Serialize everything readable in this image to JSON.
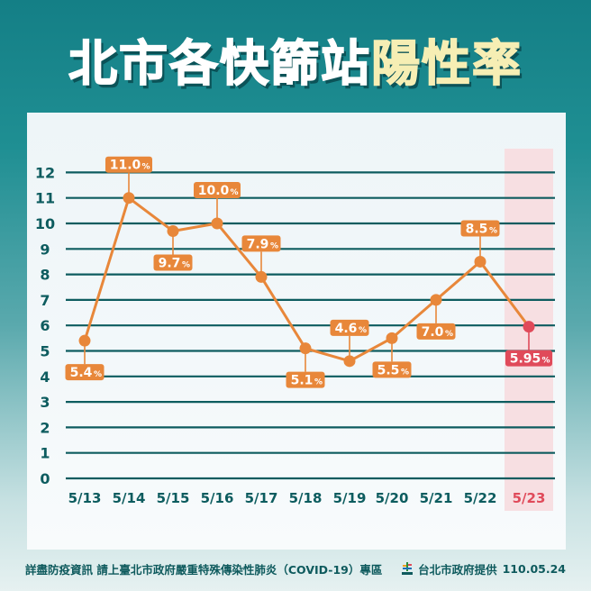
{
  "header": {
    "title_white": "北市各快篩站",
    "title_yellow": "陽性率"
  },
  "footer": {
    "info_text": "詳盡防疫資訊 請上臺北市政府嚴重特殊傳染性肺炎（COVID-19）專區",
    "source_text": "台北市政府提供",
    "date": "110.05.24",
    "logo_icon": "taipei-city-logo-icon"
  },
  "colors": {
    "background_top": "#147f86",
    "line": "#e8873a",
    "highlight": "#e04a5a",
    "highlight_band": "#f7dfe2",
    "grid": "#0d5c5f",
    "axis_text": "#0d5c5f",
    "title_accent": "#f6eeb4"
  },
  "chart_data": {
    "type": "line",
    "title": "北市各快篩站陽性率",
    "xlabel": "",
    "ylabel": "",
    "unit": "%",
    "ylim": [
      0,
      12
    ],
    "yticks": [
      0,
      1,
      2,
      3,
      4,
      5,
      6,
      7,
      8,
      9,
      10,
      11,
      12
    ],
    "grid": true,
    "categories": [
      "5/13",
      "5/14",
      "5/15",
      "5/16",
      "5/17",
      "5/18",
      "5/19",
      "5/20",
      "5/21",
      "5/22",
      "5/23"
    ],
    "values": [
      5.4,
      11.0,
      9.7,
      10.0,
      7.9,
      5.1,
      4.6,
      5.5,
      7.0,
      8.5,
      5.95
    ],
    "labels": [
      "5.4",
      "11.0",
      "9.7",
      "10.0",
      "7.9",
      "5.1",
      "4.6",
      "5.5",
      "7.0",
      "8.5",
      "5.95"
    ],
    "label_positions": [
      "below",
      "above",
      "below",
      "above",
      "above",
      "below",
      "above",
      "below",
      "below",
      "above",
      "below"
    ],
    "highlighted_category": "5/23",
    "annotations": [
      "5/23 column highlighted in red"
    ]
  }
}
